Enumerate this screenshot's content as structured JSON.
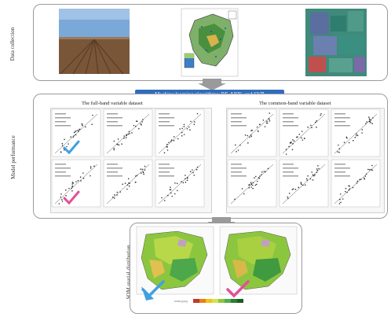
{
  "rows": {
    "data_collection": "Data collection",
    "model_performance": "Model performance",
    "som_distribution": "SOM spatial distribution"
  },
  "banner": "Machine learning algorithms: RF, ANN, and SVR",
  "datasets": {
    "left": "The full-band variable dataset",
    "right": "The common-band variable dataset"
  },
  "colors": {
    "banner": "#2f6cc0",
    "check_blue": "#3fa0e0",
    "check_pink": "#e0509a",
    "scatter": "#333333"
  },
  "map_legend_label": "SOM (g/kg)"
}
